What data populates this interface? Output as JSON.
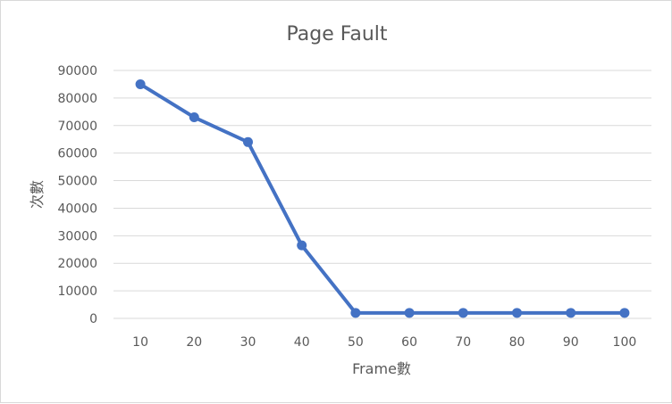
{
  "chart_data": {
    "type": "line",
    "title": "Page Fault",
    "xlabel": "Frame數",
    "ylabel": "次數",
    "categories": [
      "10",
      "20",
      "30",
      "40",
      "50",
      "60",
      "70",
      "80",
      "90",
      "100"
    ],
    "series": [
      {
        "values": [
          85000,
          73000,
          64000,
          26500,
          2000,
          2000,
          2000,
          2000,
          2000,
          2000
        ]
      }
    ],
    "ylim": [
      0,
      90000
    ],
    "yticks": [
      "0",
      "10000",
      "20000",
      "30000",
      "40000",
      "50000",
      "60000",
      "70000",
      "80000",
      "90000"
    ],
    "grid": true,
    "legend": "none",
    "colors": {
      "line": "#4472c4",
      "grid": "#d9d9d9",
      "text": "#595959"
    }
  }
}
